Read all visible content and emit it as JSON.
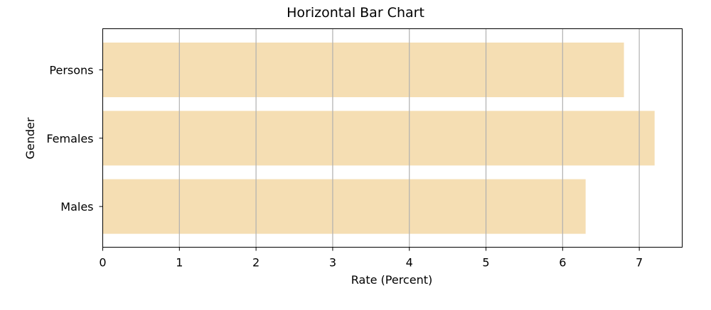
{
  "chart_data": {
    "type": "bar",
    "orientation": "horizontal",
    "title": "Horizontal Bar Chart",
    "xlabel": "Rate (Percent)",
    "ylabel": "Gender",
    "categories": [
      "Persons",
      "Females",
      "Males"
    ],
    "values": [
      6.8,
      7.2,
      6.3
    ],
    "xlim": [
      0,
      7.56
    ],
    "xticks": [
      "0",
      "1",
      "2",
      "3",
      "4",
      "5",
      "6",
      "7"
    ],
    "grid": "vertical",
    "legend": "none",
    "colors": {
      "bar": "#f5deb3",
      "grid": "#b0b0b0",
      "axis": "#000000"
    }
  }
}
